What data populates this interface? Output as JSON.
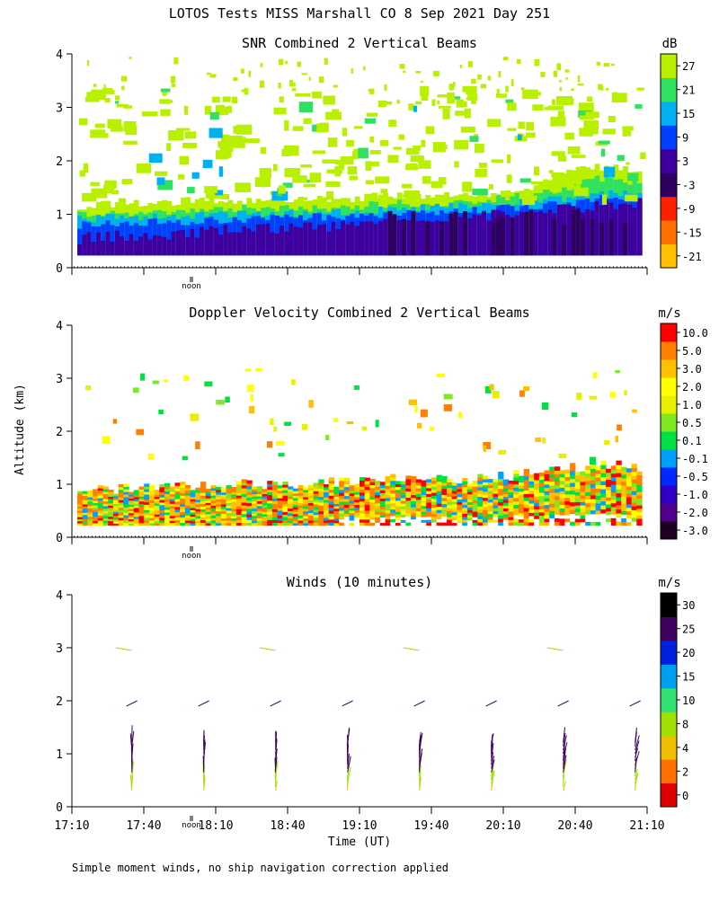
{
  "header": {
    "title": "LOTOS Tests MISS Marshall CO   8 Sep 2021 Day 251"
  },
  "shared": {
    "ylabel": "Altitude (km)",
    "xlabel": "Time (UT)",
    "noon_label": "noon",
    "footnote": "Simple moment winds, no ship navigation correction applied"
  },
  "chart_data": [
    {
      "type": "heatmap",
      "title": "SNR Combined 2 Vertical Beams",
      "colorbar_unit": "dB",
      "ylim": [
        0,
        4
      ],
      "yticks": [
        0,
        1,
        2,
        3,
        4
      ],
      "colorbar_ticks": [
        "27",
        "21",
        "15",
        "9",
        "3",
        "-3",
        "-9",
        "-15",
        "-21"
      ],
      "colorbar_colors": [
        "#000000",
        "#2a004a",
        "#5a0a8c",
        "#2020c8",
        "#0050ff",
        "#00a0f0",
        "#00d070",
        "#40e040",
        "#a0f020",
        "#d0f000",
        "#ffd000",
        "#ff9000",
        "#ff3000",
        "#e00000"
      ],
      "cbar_order": "top-to-bottom: orange(27) red(15) darkpurple(9) purple(3) blue(-3) cyan(-9) green(-15) lime(-21)",
      "time_range_minutes": [
        0,
        240
      ],
      "time_ticks": [
        "17:10",
        "17:40",
        "18:10",
        "18:40",
        "19:10",
        "19:40",
        "20:10",
        "20:40",
        "21:10"
      ],
      "layers_km": {
        "top_purple": [
          0.55,
          0.58,
          0.6,
          0.65,
          0.7,
          0.72,
          0.75,
          0.78,
          0.8,
          0.85,
          0.9,
          0.95,
          1.0,
          1.05,
          1.1,
          1.15,
          1.2
        ],
        "top_blue": [
          0.8,
          0.82,
          0.85,
          0.85,
          0.9,
          0.92,
          0.95,
          0.95,
          0.98,
          1.0,
          1.02,
          1.05,
          1.1,
          1.15,
          1.2,
          1.3,
          1.3
        ],
        "top_cyan": [
          0.9,
          0.95,
          0.95,
          0.98,
          1.0,
          1.0,
          1.02,
          1.05,
          1.05,
          1.1,
          1.12,
          1.15,
          1.2,
          1.25,
          1.3,
          1.4,
          1.4
        ],
        "top_green": [
          1.0,
          1.0,
          1.05,
          1.05,
          1.1,
          1.1,
          1.1,
          1.12,
          1.15,
          1.2,
          1.2,
          1.25,
          1.3,
          1.35,
          1.5,
          1.7,
          1.6
        ],
        "top_lime": [
          1.15,
          1.2,
          1.2,
          1.25,
          1.25,
          1.25,
          1.3,
          1.3,
          1.3,
          1.35,
          1.35,
          1.35,
          1.4,
          1.5,
          1.8,
          1.9,
          1.8
        ]
      }
    },
    {
      "type": "heatmap",
      "title": "Doppler Velocity Combined 2 Vertical Beams",
      "colorbar_unit": "m/s",
      "ylim": [
        0,
        4
      ],
      "yticks": [
        0,
        1,
        2,
        3,
        4
      ],
      "colorbar_ticks": [
        "10.0",
        "5.0",
        "3.0",
        "2.0",
        "1.0",
        "0.5",
        "0.1",
        "-0.1",
        "-0.5",
        "-1.0",
        "-2.0",
        "-3.0"
      ],
      "colorbar_colors": [
        "#200020",
        "#50008c",
        "#3000c8",
        "#0028ff",
        "#00a0ff",
        "#00e040",
        "#60e820",
        "#c0f000",
        "#ffff00",
        "#ffd000",
        "#ffa000",
        "#ff6000",
        "#ff0000"
      ],
      "time_ticks": [
        "17:10",
        "17:40",
        "18:10",
        "18:40",
        "19:10",
        "19:40",
        "20:10",
        "20:40",
        "21:10"
      ],
      "layer_top_km": [
        0.9,
        0.9,
        0.95,
        0.95,
        1.0,
        1.0,
        1.0,
        1.05,
        1.05,
        1.1,
        1.1,
        1.1,
        1.15,
        1.2,
        1.3,
        1.4,
        1.3
      ]
    },
    {
      "type": "scatter",
      "title": "Winds (10 minutes)",
      "colorbar_unit": "m/s",
      "ylim": [
        0,
        4
      ],
      "yticks": [
        0,
        1,
        2,
        3,
        4
      ],
      "colorbar_ticks": [
        "30",
        "25",
        "20",
        "15",
        "10",
        "8",
        "4",
        "2",
        "0"
      ],
      "colorbar_colors": [
        "#000000",
        "#400060",
        "#3000d0",
        "#00a0f0",
        "#00d080",
        "#40e020",
        "#a0e000",
        "#f0c000",
        "#ff7000",
        "#e00000"
      ],
      "time_ticks": [
        "17:10",
        "17:40",
        "18:10",
        "18:40",
        "19:10",
        "19:40",
        "20:10",
        "20:40",
        "21:10"
      ],
      "profile_times_min": [
        25,
        55,
        85,
        115,
        145,
        175,
        205,
        235
      ]
    }
  ]
}
